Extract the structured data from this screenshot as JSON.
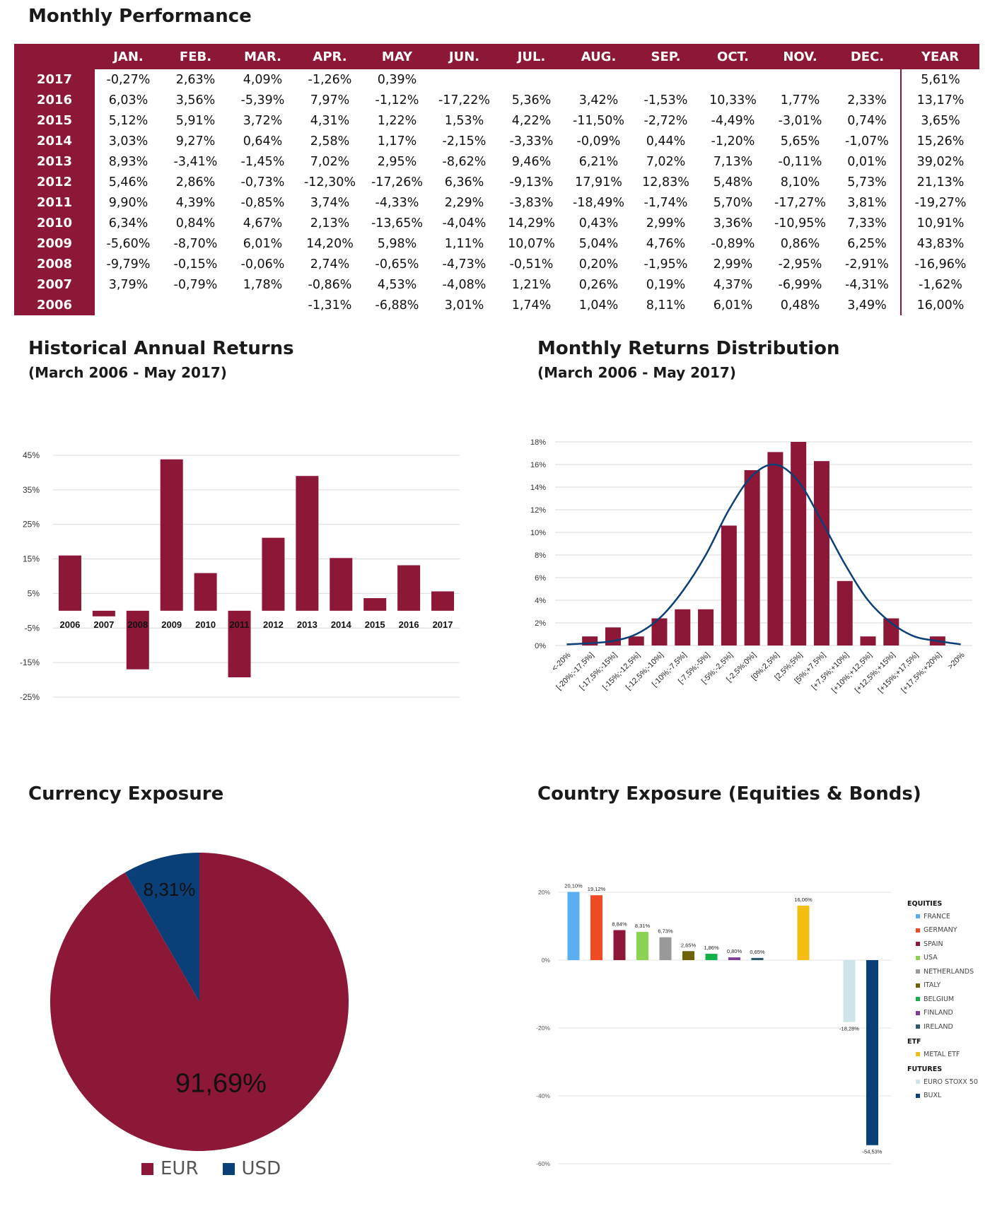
{
  "colors": {
    "primary": "#8c1736",
    "secondary": "#0b3f77",
    "grid": "#d9d9d9"
  },
  "performance": {
    "title": "Monthly Performance",
    "headers": [
      "",
      "JAN.",
      "FEB.",
      "MAR.",
      "APR.",
      "MAY",
      "JUN.",
      "JUL.",
      "AUG.",
      "SEP.",
      "OCT.",
      "NOV.",
      "DEC.",
      "YEAR"
    ],
    "rows": [
      [
        "2017",
        "-0,27%",
        "2,63%",
        "4,09%",
        "-1,26%",
        "0,39%",
        "",
        "",
        "",
        "",
        "",
        "",
        "",
        "5,61%"
      ],
      [
        "2016",
        "6,03%",
        "3,56%",
        "-5,39%",
        "7,97%",
        "-1,12%",
        "-17,22%",
        "5,36%",
        "3,42%",
        "-1,53%",
        "10,33%",
        "1,77%",
        "2,33%",
        "13,17%"
      ],
      [
        "2015",
        "5,12%",
        "5,91%",
        "3,72%",
        "4,31%",
        "1,22%",
        "1,53%",
        "4,22%",
        "-11,50%",
        "-2,72%",
        "-4,49%",
        "-3,01%",
        "0,74%",
        "3,65%"
      ],
      [
        "2014",
        "3,03%",
        "9,27%",
        "0,64%",
        "2,58%",
        "1,17%",
        "-2,15%",
        "-3,33%",
        "-0,09%",
        "0,44%",
        "-1,20%",
        "5,65%",
        "-1,07%",
        "15,26%"
      ],
      [
        "2013",
        "8,93%",
        "-3,41%",
        "-1,45%",
        "7,02%",
        "2,95%",
        "-8,62%",
        "9,46%",
        "6,21%",
        "7,02%",
        "7,13%",
        "-0,11%",
        "0,01%",
        "39,02%"
      ],
      [
        "2012",
        "5,46%",
        "2,86%",
        "-0,73%",
        "-12,30%",
        "-17,26%",
        "6,36%",
        "-9,13%",
        "17,91%",
        "12,83%",
        "5,48%",
        "8,10%",
        "5,73%",
        "21,13%"
      ],
      [
        "2011",
        "9,90%",
        "4,39%",
        "-0,85%",
        "3,74%",
        "-4,33%",
        "2,29%",
        "-3,83%",
        "-18,49%",
        "-1,74%",
        "5,70%",
        "-17,27%",
        "3,81%",
        "-19,27%"
      ],
      [
        "2010",
        "6,34%",
        "0,84%",
        "4,67%",
        "2,13%",
        "-13,65%",
        "-4,04%",
        "14,29%",
        "0,43%",
        "2,99%",
        "3,36%",
        "-10,95%",
        "7,33%",
        "10,91%"
      ],
      [
        "2009",
        "-5,60%",
        "-8,70%",
        "6,01%",
        "14,20%",
        "5,98%",
        "1,11%",
        "10,07%",
        "5,04%",
        "4,76%",
        "-0,89%",
        "0,86%",
        "6,25%",
        "43,83%"
      ],
      [
        "2008",
        "-9,79%",
        "-0,15%",
        "-0,06%",
        "2,74%",
        "-0,65%",
        "-4,73%",
        "-0,51%",
        "0,20%",
        "-1,95%",
        "2,99%",
        "-2,95%",
        "-2,91%",
        "-16,96%"
      ],
      [
        "2007",
        "3,79%",
        "-0,79%",
        "1,78%",
        "-0,86%",
        "4,53%",
        "-4,08%",
        "1,21%",
        "0,26%",
        "0,19%",
        "4,37%",
        "-6,99%",
        "-4,31%",
        "-1,62%"
      ],
      [
        "2006",
        "",
        "",
        "",
        "-1,31%",
        "-6,88%",
        "3,01%",
        "1,74%",
        "1,04%",
        "8,11%",
        "6,01%",
        "0,48%",
        "3,49%",
        "16,00%"
      ]
    ]
  },
  "historical": {
    "title": "Historical Annual Returns",
    "subtitle": "(March 2006 - May 2017)"
  },
  "distribution": {
    "title": "Monthly Returns Distribution",
    "subtitle": "(March 2006 - May 2017)"
  },
  "currency": {
    "title": "Currency Exposure"
  },
  "country": {
    "title": "Country Exposure (Equities & Bonds)"
  },
  "chart_data": [
    {
      "type": "bar",
      "categories": [
        "2006",
        "2007",
        "2008",
        "2009",
        "2010",
        "2011",
        "2012",
        "2013",
        "2014",
        "2015",
        "2016",
        "2017"
      ],
      "values": [
        16.0,
        -1.62,
        -16.96,
        43.83,
        10.91,
        -19.27,
        21.13,
        39.02,
        15.26,
        3.65,
        13.17,
        5.61
      ],
      "yticks": [
        "45%",
        "35%",
        "25%",
        "15%",
        "5%",
        "-5%",
        "-15%",
        "-25%"
      ],
      "ylim": [
        -25,
        45
      ],
      "grid": true,
      "color": "#8c1736"
    },
    {
      "type": "bar",
      "categories": [
        "<-20%",
        "[-20%;-17,5%]",
        "[-17,5%;-15%]",
        "[-15%;-12,5%]",
        "[-12,5%;-10%]",
        "[-10%;-7,5%]",
        "[-7,5%;-5%]",
        "[-5%;-2,5%]",
        "[-2,5%;0%]",
        "[0%;2,5%]",
        "[2,5%;5%]",
        "[5%;+7,5%]",
        "[+7,5%;+10%]",
        "[+10%;+12,5%]",
        "[+12,5%;+15%]",
        "[+15%;+17,5%]",
        "[+17,5%;+20%]",
        ">20%"
      ],
      "values": [
        0,
        0.8,
        1.6,
        0.8,
        2.4,
        3.2,
        3.2,
        10.6,
        15.5,
        17.1,
        18.0,
        16.3,
        5.7,
        0.8,
        2.4,
        0,
        0.8,
        0
      ],
      "line_values": [
        0.1,
        0.2,
        0.4,
        1.0,
        2.4,
        4.8,
        8.0,
        12.0,
        15.0,
        16.0,
        14.5,
        11.0,
        7.2,
        4.0,
        2.0,
        0.8,
        0.4,
        0.1
      ],
      "yticks": [
        "18%",
        "16%",
        "14%",
        "12%",
        "10%",
        "8%",
        "6%",
        "4%",
        "2%",
        "0%"
      ],
      "ylim": [
        0,
        18
      ],
      "grid": true,
      "bar_color": "#8c1736",
      "line_color": "#0b3f77"
    },
    {
      "type": "pie",
      "slices": [
        {
          "label": "EUR",
          "value": 91.69,
          "display": "91,69%",
          "color": "#8c1736"
        },
        {
          "label": "USD",
          "value": 8.31,
          "display": "8,31%",
          "color": "#0b3f77"
        }
      ],
      "legend": "bottom"
    },
    {
      "type": "bar",
      "categories": [
        "FRANCE",
        "GERMANY",
        "SPAIN",
        "USA",
        "NETHERLANDS",
        "ITALY",
        "BELGIUM",
        "FINLAND",
        "IRELAND",
        "METAL ETF",
        "EURO STOXX 50",
        "BUXL"
      ],
      "values": [
        20.1,
        19.12,
        8.84,
        8.31,
        6.73,
        2.65,
        1.86,
        0.8,
        0.65,
        16.06,
        -18.28,
        -54.53
      ],
      "labels": [
        "20,10%",
        "19,12%",
        "8,84%",
        "8,31%",
        "6,73%",
        "2,65%",
        "1,86%",
        "0,80%",
        "0,65%",
        "16,06%",
        "-18,28%",
        "-54,53%"
      ],
      "colors": [
        "#5aaef2",
        "#ef4a24",
        "#8c1736",
        "#8bd152",
        "#999999",
        "#6e6208",
        "#12b04a",
        "#7d3b9a",
        "#2d5a6b",
        "#f2be11",
        "#cfe4e8",
        "#0b3f77"
      ],
      "yticks": [
        "20%",
        "0%",
        "-20%",
        "-40%",
        "-60%"
      ],
      "ylim": [
        -60,
        20
      ],
      "grid": true,
      "legend": "right",
      "legend_groups": [
        {
          "name": "EQUITIES",
          "items": [
            0,
            1,
            2,
            3,
            4,
            5,
            6,
            7,
            8
          ]
        },
        {
          "name": "ETF",
          "items": [
            9
          ]
        },
        {
          "name": "FUTURES",
          "items": [
            10,
            11
          ]
        }
      ]
    }
  ]
}
